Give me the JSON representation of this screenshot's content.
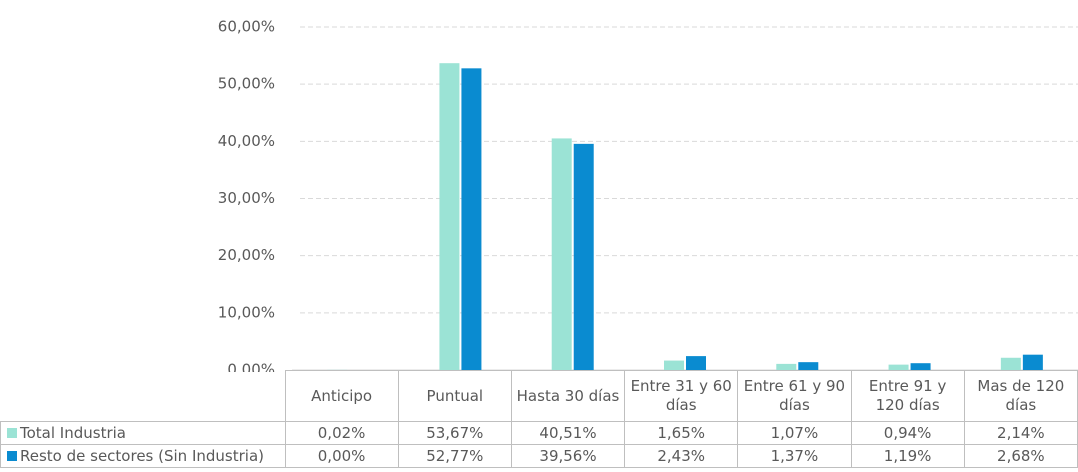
{
  "chart_data": {
    "type": "bar",
    "categories": [
      "Anticipo",
      "Puntual",
      "Hasta 30 días",
      "Entre 31 y 60 días",
      "Entre 61 y 90 días",
      "Entre 91 y 120 días",
      "Mas de 120 días"
    ],
    "series": [
      {
        "name": "Total Industria",
        "color": "#9be3d5",
        "values": [
          0.02,
          53.67,
          40.51,
          1.65,
          1.07,
          0.94,
          2.14
        ],
        "value_labels": [
          "0,02%",
          "53,67%",
          "40,51%",
          "1,65%",
          "1,07%",
          "0,94%",
          "2,14%"
        ]
      },
      {
        "name": "Resto de sectores (Sin Industria)",
        "color": "#0a8bd0",
        "values": [
          0.0,
          52.77,
          39.56,
          2.43,
          1.37,
          1.19,
          2.68
        ],
        "value_labels": [
          "0,00%",
          "52,77%",
          "39,56%",
          "2,43%",
          "1,37%",
          "1,19%",
          "2,68%"
        ]
      }
    ],
    "ylim": [
      0,
      60
    ],
    "yticks": [
      {
        "value": 0,
        "label": "0,00%"
      },
      {
        "value": 10,
        "label": "10,00%"
      },
      {
        "value": 20,
        "label": "20,00%"
      },
      {
        "value": 30,
        "label": "30,00%"
      },
      {
        "value": 40,
        "label": "40,00%"
      },
      {
        "value": 50,
        "label": "50,00%"
      },
      {
        "value": 60,
        "label": "60,00%"
      }
    ],
    "grid": true
  }
}
